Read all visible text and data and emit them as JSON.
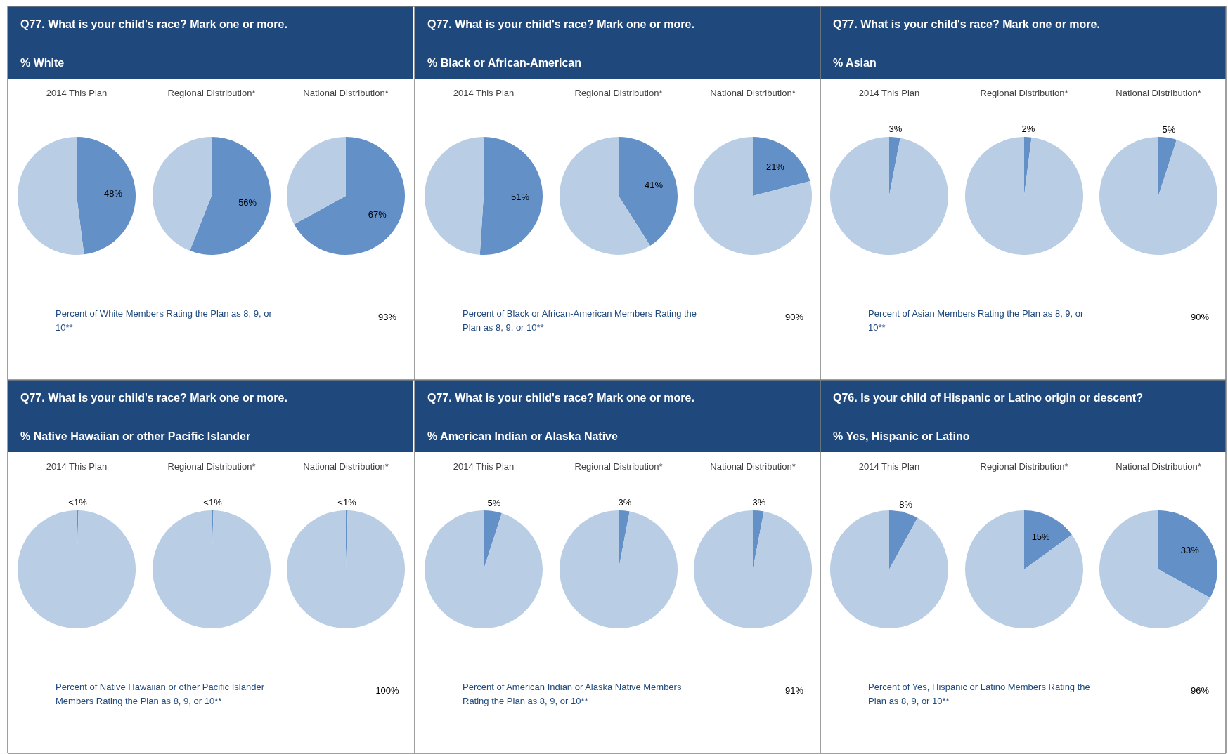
{
  "chart_data": [
    {
      "type": "other",
      "title": "Q77. What is your child's race? Mark one or more.",
      "subtitle": "% White",
      "annotations": [
        "Percent of White Members Rating the Plan as 8, 9, or 10**",
        "93%"
      ]
    },
    {
      "type": "pie",
      "title": "2014  This Plan",
      "categories": [
        null,
        null
      ],
      "values": [
        48,
        52
      ],
      "colors": [
        "#6390c6",
        "#b9cde5"
      ],
      "value_labels": [
        "48%",
        null
      ]
    },
    {
      "type": "pie",
      "title": "Regional Distribution*",
      "categories": [
        null,
        null
      ],
      "values": [
        56,
        44
      ],
      "colors": [
        "#6390c6",
        "#b9cde5"
      ],
      "value_labels": [
        "56%",
        null
      ]
    },
    {
      "type": "pie",
      "title": "National Distribution*",
      "categories": [
        null,
        null
      ],
      "values": [
        67,
        33
      ],
      "colors": [
        "#6390c6",
        "#b9cde5"
      ],
      "value_labels": [
        "67%",
        null
      ]
    },
    {
      "type": "other",
      "title": "Q77. What is your child's race? Mark one or more.",
      "subtitle": "% Black or African-American",
      "annotations": [
        "Percent of Black or African-American Members Rating the Plan as 8, 9, or 10**",
        "90%"
      ]
    },
    {
      "type": "pie",
      "title": "2014  This Plan",
      "categories": [
        null,
        null
      ],
      "values": [
        51,
        49
      ],
      "colors": [
        "#6390c6",
        "#b9cde5"
      ],
      "value_labels": [
        "51%",
        null
      ]
    },
    {
      "type": "pie",
      "title": "Regional Distribution*",
      "categories": [
        null,
        null
      ],
      "values": [
        41,
        59
      ],
      "colors": [
        "#6390c6",
        "#b9cde5"
      ],
      "value_labels": [
        "41%",
        null
      ]
    },
    {
      "type": "pie",
      "title": "National Distribution*",
      "categories": [
        null,
        null
      ],
      "values": [
        21,
        79
      ],
      "colors": [
        "#6390c6",
        "#b9cde5"
      ],
      "value_labels": [
        "21%",
        null
      ]
    },
    {
      "type": "other",
      "title": "Q77. What is your child's race? Mark one or more.",
      "subtitle": "% Asian",
      "annotations": [
        "Percent of Asian Members Rating the Plan as 8, 9, or 10**",
        "90%"
      ]
    },
    {
      "type": "pie",
      "title": "2014  This Plan",
      "categories": [
        null,
        null
      ],
      "values": [
        3,
        97
      ],
      "colors": [
        "#6390c6",
        "#b9cde5"
      ],
      "value_labels": [
        "3%",
        null
      ]
    },
    {
      "type": "pie",
      "title": "Regional Distribution*",
      "categories": [
        null,
        null
      ],
      "values": [
        2,
        98
      ],
      "colors": [
        "#6390c6",
        "#b9cde5"
      ],
      "value_labels": [
        "2%",
        null
      ]
    },
    {
      "type": "pie",
      "title": "National Distribution*",
      "categories": [
        null,
        null
      ],
      "values": [
        5,
        95
      ],
      "colors": [
        "#6390c6",
        "#b9cde5"
      ],
      "value_labels": [
        "5%",
        null
      ]
    },
    {
      "type": "other",
      "title": "Q77. What is your child's race? Mark one or more.",
      "subtitle": "% Native Hawaiian or other Pacific Islander",
      "annotations": [
        "Percent of Native Hawaiian or other Pacific Islander Members Rating the Plan as 8, 9, or 10**",
        "100%"
      ]
    },
    {
      "type": "pie",
      "title": "2014  This Plan",
      "categories": [
        null,
        null
      ],
      "values": [
        0.5,
        99.5
      ],
      "colors": [
        "#6390c6",
        "#b9cde5"
      ],
      "value_labels": [
        "<1%",
        null
      ]
    },
    {
      "type": "pie",
      "title": "Regional Distribution*",
      "categories": [
        null,
        null
      ],
      "values": [
        0.5,
        99.5
      ],
      "colors": [
        "#6390c6",
        "#b9cde5"
      ],
      "value_labels": [
        "<1%",
        null
      ]
    },
    {
      "type": "pie",
      "title": "National Distribution*",
      "categories": [
        null,
        null
      ],
      "values": [
        0.5,
        99.5
      ],
      "colors": [
        "#6390c6",
        "#b9cde5"
      ],
      "value_labels": [
        "<1%",
        null
      ]
    },
    {
      "type": "other",
      "title": "Q77. What is your child's race? Mark one or more.",
      "subtitle": "% American Indian or Alaska Native",
      "annotations": [
        "Percent of American Indian or Alaska Native Members Rating the Plan as 8, 9, or 10**",
        "91%"
      ]
    },
    {
      "type": "pie",
      "title": "2014  This Plan",
      "categories": [
        null,
        null
      ],
      "values": [
        5,
        95
      ],
      "colors": [
        "#6390c6",
        "#b9cde5"
      ],
      "value_labels": [
        "5%",
        null
      ]
    },
    {
      "type": "pie",
      "title": "Regional Distribution*",
      "categories": [
        null,
        null
      ],
      "values": [
        3,
        97
      ],
      "colors": [
        "#6390c6",
        "#b9cde5"
      ],
      "value_labels": [
        "3%",
        null
      ]
    },
    {
      "type": "pie",
      "title": "National Distribution*",
      "categories": [
        null,
        null
      ],
      "values": [
        3,
        97
      ],
      "colors": [
        "#6390c6",
        "#b9cde5"
      ],
      "value_labels": [
        "3%",
        null
      ]
    },
    {
      "type": "other",
      "title": "Q76. Is your child of Hispanic or Latino origin or descent?",
      "subtitle": "% Yes, Hispanic or Latino",
      "annotations": [
        "Percent of Yes, Hispanic or Latino Members Rating the Plan as 8, 9, or 10**",
        "96%"
      ]
    },
    {
      "type": "pie",
      "title": "2014  This Plan",
      "categories": [
        null,
        null
      ],
      "values": [
        8,
        92
      ],
      "colors": [
        "#6390c6",
        "#b9cde5"
      ],
      "value_labels": [
        "8%",
        null
      ]
    },
    {
      "type": "pie",
      "title": "Regional Distribution*",
      "categories": [
        null,
        null
      ],
      "values": [
        15,
        85
      ],
      "colors": [
        "#6390c6",
        "#b9cde5"
      ],
      "value_labels": [
        "15%",
        null
      ]
    },
    {
      "type": "pie",
      "title": "National Distribution*",
      "categories": [
        null,
        null
      ],
      "values": [
        33,
        67
      ],
      "colors": [
        "#6390c6",
        "#b9cde5"
      ],
      "value_labels": [
        "33%",
        null
      ]
    }
  ]
}
